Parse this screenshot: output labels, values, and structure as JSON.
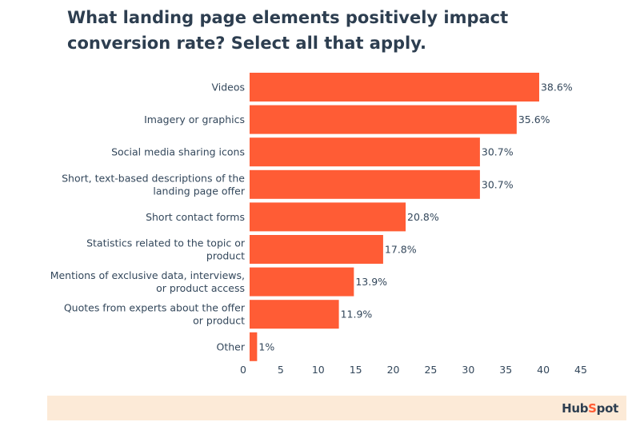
{
  "chart_data": {
    "type": "bar",
    "orientation": "horizontal",
    "title": "What landing page elements positively impact conversion rate? Select all that apply.",
    "categories": [
      [
        "Videos"
      ],
      [
        "Imagery or graphics"
      ],
      [
        "Social media sharing icons"
      ],
      [
        "Short, text-based descriptions of the",
        "landing page offer"
      ],
      [
        "Short contact forms"
      ],
      [
        "Statistics related to the topic or",
        "product"
      ],
      [
        "Mentions of exclusive data, interviews,",
        "or product access"
      ],
      [
        "Quotes from experts about the offer",
        "or product"
      ],
      [
        "Other"
      ]
    ],
    "values": [
      38.6,
      35.6,
      30.7,
      30.7,
      20.8,
      17.8,
      13.9,
      11.9,
      1
    ],
    "value_labels": [
      "38.6%",
      "35.6%",
      "30.7%",
      "30.7%",
      "20.8%",
      "17.8%",
      "13.9%",
      "11.9%",
      "1%"
    ],
    "xticks": [
      0,
      5,
      10,
      15,
      20,
      25,
      30,
      35,
      40,
      45
    ],
    "xlim": [
      0,
      45
    ],
    "bar_color": "#ff5c35",
    "grid": false,
    "legend": "none"
  },
  "footer": {
    "brand": "HubSpot",
    "background": "#fcead7"
  }
}
